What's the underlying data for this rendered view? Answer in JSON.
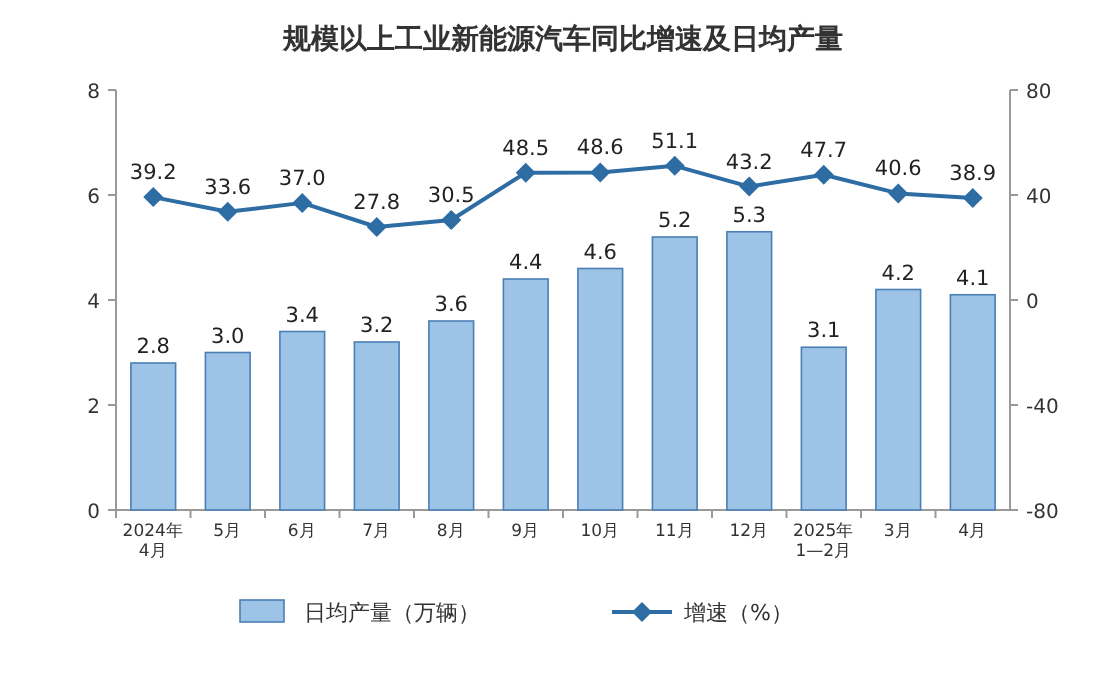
{
  "chart_data": {
    "type": "bar",
    "title": "规模以上工业新能源汽车同比增速及日均产量",
    "categories": [
      "2024年\n4月",
      "5月",
      "6月",
      "7月",
      "8月",
      "9月",
      "10月",
      "11月",
      "12月",
      "2025年\n1—2月",
      "3月",
      "4月"
    ],
    "ylim": [
      0,
      8
    ],
    "yticks": [
      0,
      2,
      4,
      6,
      8
    ],
    "y2lim": [
      -80,
      80
    ],
    "y2ticks": [
      -80,
      -40,
      0,
      40,
      80
    ],
    "legend": "bottom",
    "grid": false,
    "series": [
      {
        "name": "日均产量（万辆）",
        "color": "#9dc3e6",
        "values": [
          2.8,
          3.0,
          3.4,
          3.2,
          3.6,
          4.4,
          4.6,
          5.2,
          5.3,
          3.1,
          4.2,
          4.1
        ],
        "value_labels": [
          "2.8",
          "3.0",
          "3.4",
          "3.2",
          "3.6",
          "4.4",
          "4.6",
          "5.2",
          "5.3",
          "3.1",
          "4.2",
          "4.1"
        ]
      },
      {
        "name": "增速（%）",
        "type": "line",
        "axis": "y2",
        "color": "#2e6ca4",
        "marker": "diamond",
        "values": [
          39.2,
          33.6,
          37.0,
          27.8,
          30.5,
          48.5,
          48.6,
          51.1,
          43.2,
          47.7,
          40.6,
          38.9
        ],
        "value_labels": [
          "39.2",
          "33.6",
          "37.0",
          "27.8",
          "30.5",
          "48.5",
          "48.6",
          "51.1",
          "43.2",
          "47.7",
          "40.6",
          "38.9"
        ]
      }
    ]
  }
}
